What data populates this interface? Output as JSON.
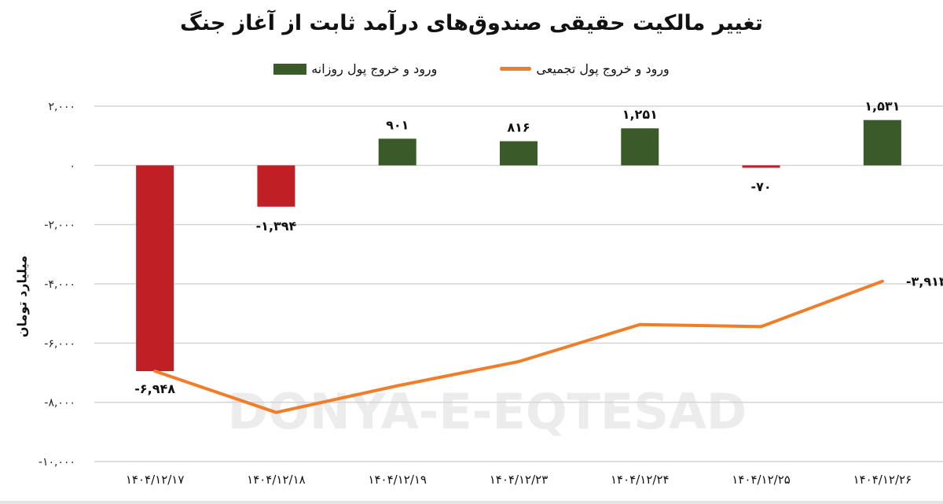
{
  "title": "تغییر مالکیت حقیقی صندوق‌های درآمد ثابت از آغاز جنگ",
  "legend": {
    "line_label": "ورود و خروج پول تجمیعی",
    "bar_label": "ورود و خروج پول روزانه"
  },
  "colors": {
    "positive": "#3a5a2a",
    "negative": "#c01f25",
    "line": "#ef7d2a",
    "grid": "#d4d4d4"
  },
  "watermark": "DONYA-E-EQTESAD",
  "chart_data": {
    "type": "bar",
    "title": "تغییر مالکیت حقیقی صندوق‌های درآمد ثابت از آغاز جنگ",
    "xlabel": "",
    "ylabel": "میلیارد تومان",
    "ylim": [
      -10000,
      2000
    ],
    "yticks": [
      2000,
      0,
      -2000,
      -4000,
      -6000,
      -8000,
      -10000
    ],
    "ytick_labels": [
      "۲,۰۰۰",
      "۰",
      "-۲,۰۰۰",
      "-۴,۰۰۰",
      "-۶,۰۰۰",
      "-۸,۰۰۰",
      "-۱۰,۰۰۰"
    ],
    "categories": [
      "۱۴۰۴/۱۲/۱۷",
      "۱۴۰۴/۱۲/۱۸",
      "۱۴۰۴/۱۲/۱۹",
      "۱۴۰۴/۱۲/۲۳",
      "۱۴۰۴/۱۲/۲۴",
      "۱۴۰۴/۱۲/۲۵",
      "۱۴۰۴/۱۲/۲۶"
    ],
    "grid": true,
    "legend_position": "top",
    "series": [
      {
        "name": "ورود و خروج پول روزانه",
        "type": "bar",
        "values": [
          -6948,
          -1394,
          901,
          816,
          1251,
          -70,
          1531
        ],
        "labels": [
          "-۶,۹۴۸",
          "-۱,۳۹۴",
          "۹۰۱",
          "۸۱۶",
          "۱,۲۵۱",
          "-۷۰",
          "۱,۵۳۱"
        ]
      },
      {
        "name": "ورود و خروج پول تجمیعی",
        "type": "line",
        "values": [
          -6948,
          -8342,
          -7441,
          -6625,
          -5374,
          -5444,
          -3913
        ],
        "end_label": "-۳,۹۱۳"
      }
    ]
  }
}
